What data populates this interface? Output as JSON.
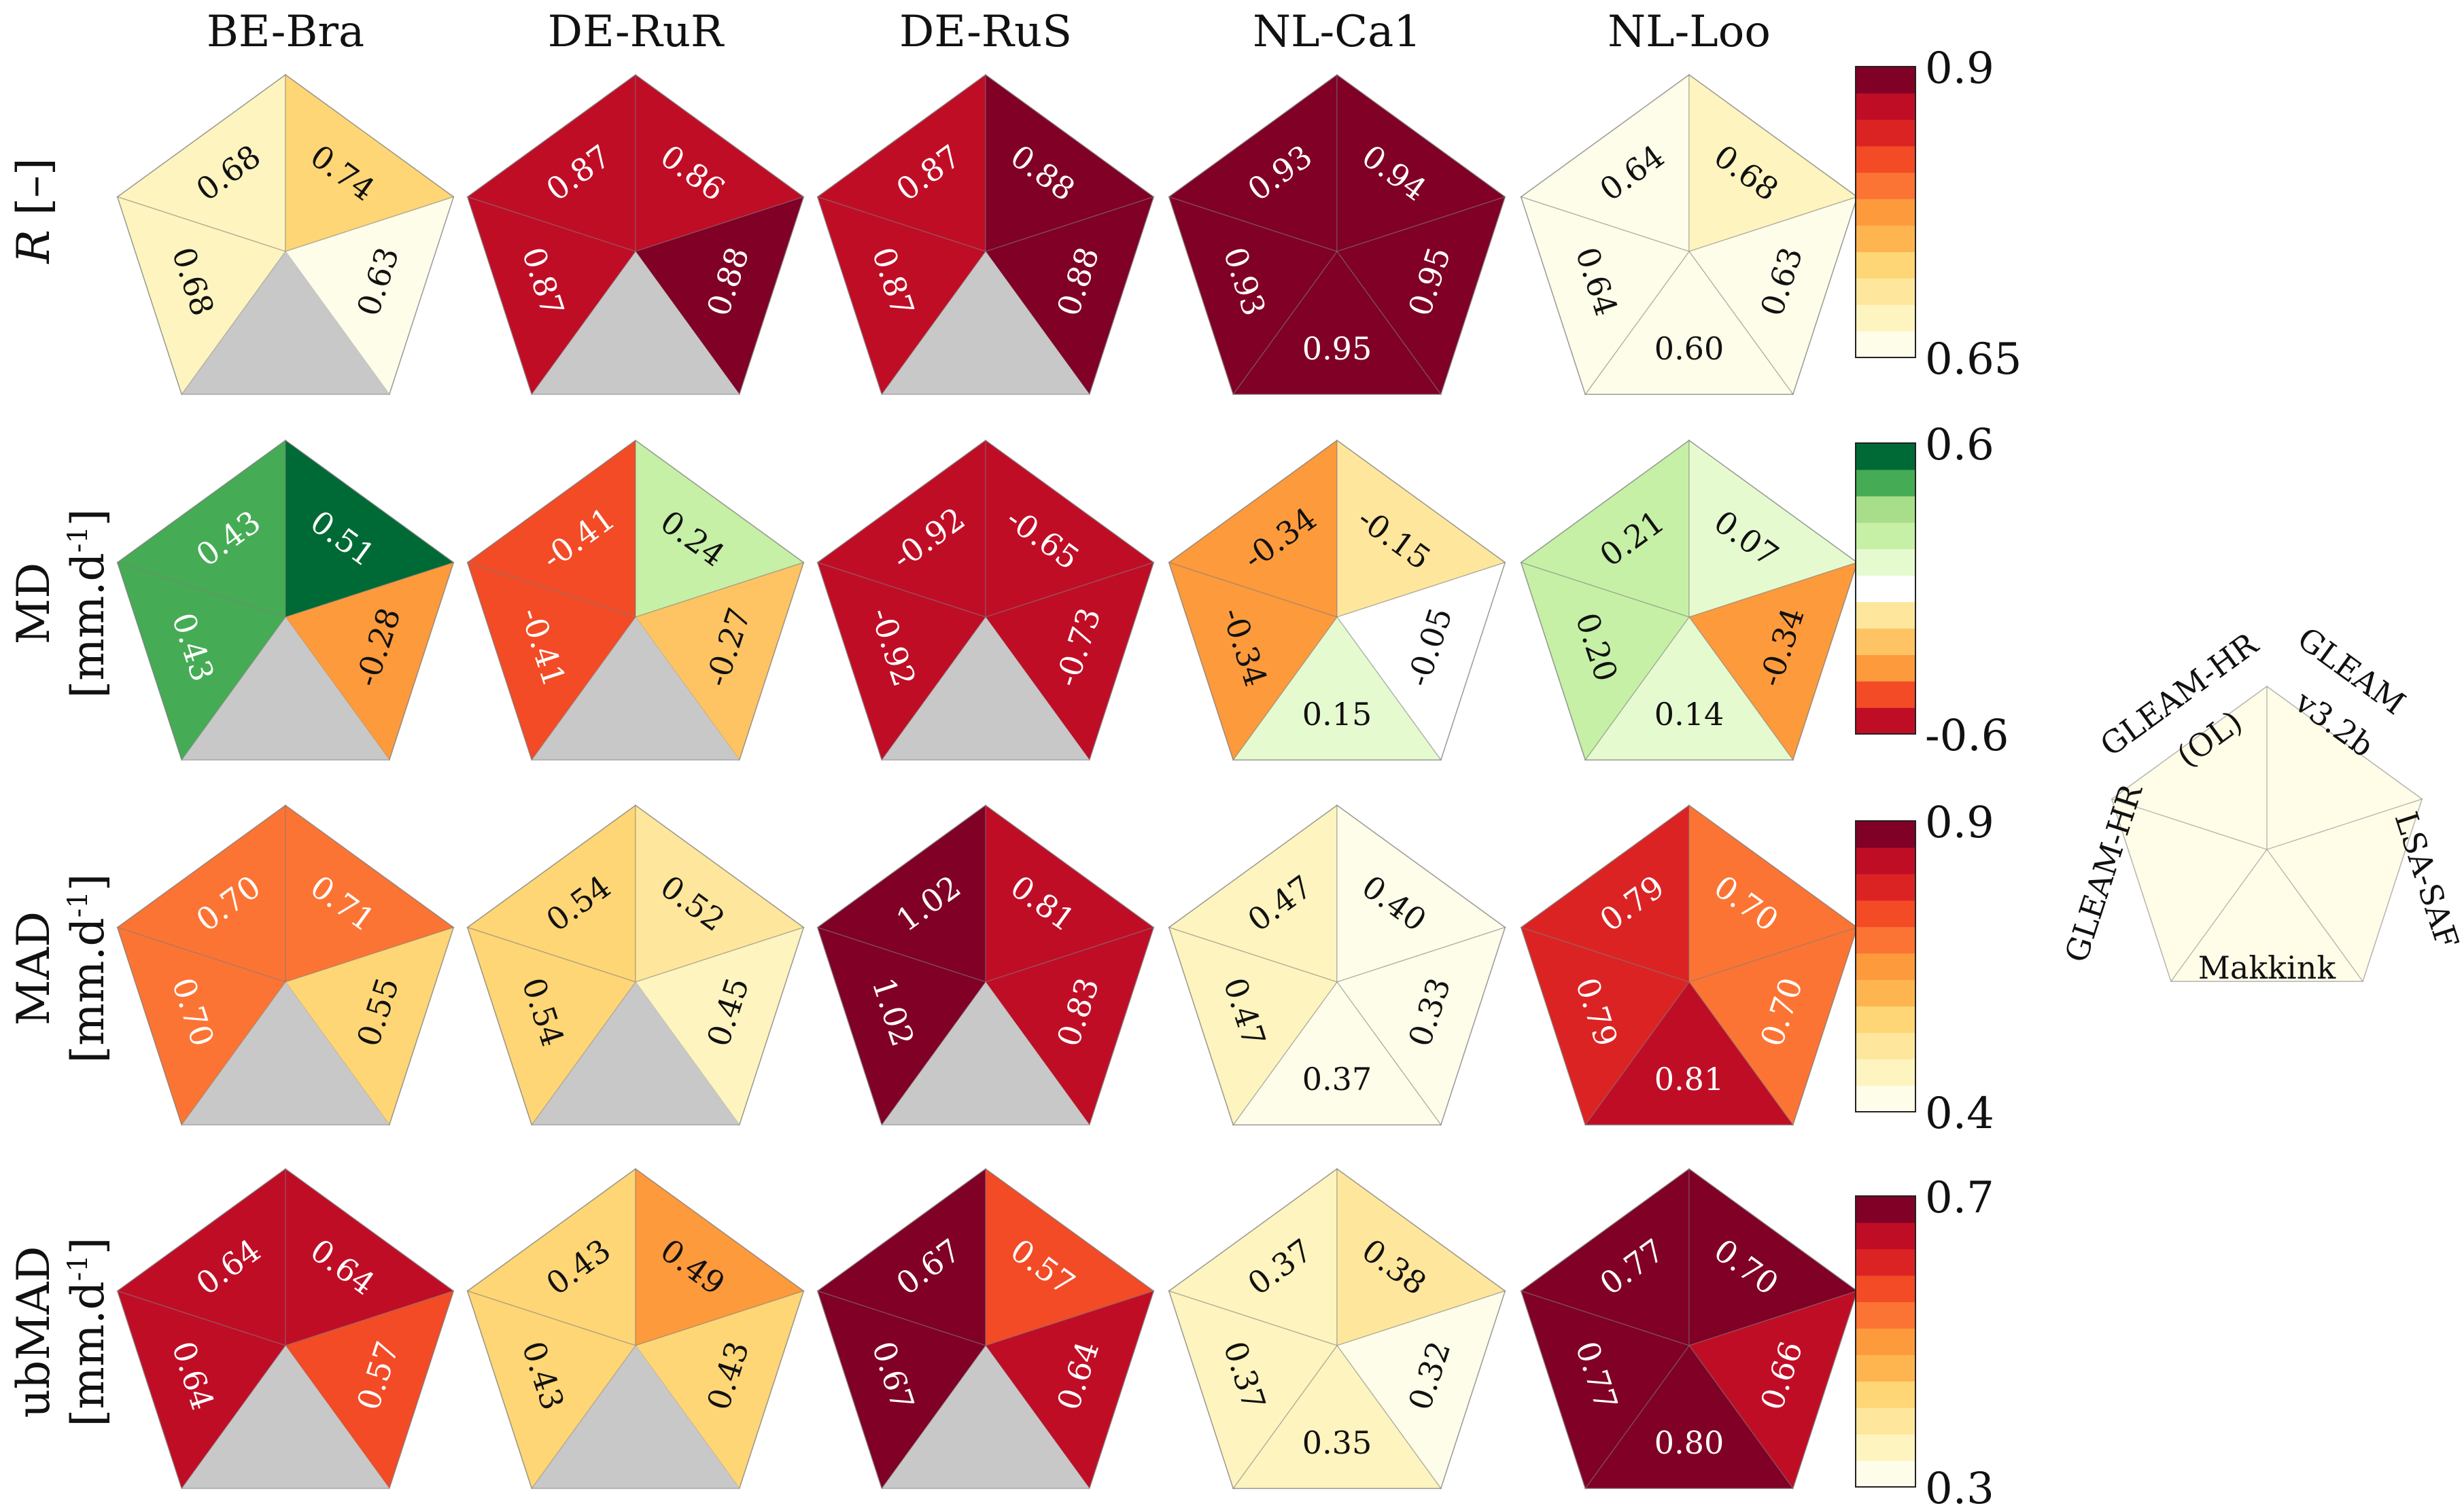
{
  "chart_data": {
    "type": "pentagon-heatmap",
    "sites": [
      "BE-Bra",
      "DE-RuR",
      "DE-RuS",
      "NL-Ca1",
      "NL-Loo"
    ],
    "segments": [
      "GLEAM-HR (OL)",
      "GLEAM v3.2b",
      "LSA-SAF",
      "Makkink",
      "GLEAM-HR"
    ],
    "legend": {
      "top_left": "GLEAM-HR",
      "top_left_sub": "(OL)",
      "top_right": "GLEAM",
      "top_right_sub": "v3.2b",
      "right": "LSA-SAF",
      "bottom": "Makkink",
      "left": "GLEAM-HR"
    },
    "metrics": [
      {
        "id": "R",
        "label_var": "R",
        "label_rest": " [–]",
        "colorbar": {
          "min": 0.65,
          "max": 0.9,
          "min_label": "0.65",
          "max_label": "0.9",
          "colors": [
            "#fefdea",
            "#fef4bf",
            "#fee79c",
            "#fed676",
            "#feb550",
            "#fd9a3c",
            "#fc7433",
            "#f24b26",
            "#dc2323",
            "#c00d26",
            "#800026"
          ]
        },
        "sites": [
          {
            "values": [
              "0.68",
              "0.74",
              "0.63",
              null,
              "0.68"
            ]
          },
          {
            "values": [
              "0.87",
              "0.86",
              "0.88",
              null,
              "0.87"
            ]
          },
          {
            "values": [
              "0.87",
              "0.88",
              "0.88",
              null,
              "0.87"
            ]
          },
          {
            "values": [
              "0.93",
              "0.94",
              "0.95",
              "0.95",
              "0.93"
            ]
          },
          {
            "values": [
              "0.64",
              "0.68",
              "0.63",
              "0.60",
              "0.64"
            ]
          }
        ]
      },
      {
        "id": "MD",
        "label_var": "MD",
        "label_unit": "[mm.d",
        "label_sup": "-1",
        "label_close": "]",
        "colorbar": {
          "min": -0.6,
          "max": 0.6,
          "min_label": "-0.6",
          "max_label": "0.6",
          "colors": [
            "#c00d26",
            "#f24b26",
            "#fd9a3c",
            "#fec463",
            "#fee79c",
            "#ffffff",
            "#e6fad0",
            "#c6f0a6",
            "#a8dd8a",
            "#45ac55",
            "#006a36"
          ]
        },
        "sites": [
          {
            "values": [
              "0.43",
              "0.51",
              "-0.28",
              null,
              "0.43"
            ]
          },
          {
            "values": [
              "-0.41",
              "0.24",
              "-0.27",
              null,
              "-0.41"
            ]
          },
          {
            "values": [
              "-0.92",
              "-0.65",
              "-0.73",
              null,
              "-0.92"
            ]
          },
          {
            "values": [
              "-0.34",
              "-0.15",
              "-0.05",
              "0.15",
              "-0.34"
            ]
          },
          {
            "values": [
              "0.21",
              "0.07",
              "-0.34",
              "0.14",
              "0.20"
            ]
          }
        ]
      },
      {
        "id": "MAD",
        "label_var": "MAD",
        "label_unit": "[mm.d",
        "label_sup": "-1",
        "label_close": "]",
        "colorbar": {
          "min": 0.4,
          "max": 0.9,
          "min_label": "0.4",
          "max_label": "0.9",
          "colors": [
            "#fefdea",
            "#fef4bf",
            "#fee79c",
            "#fed676",
            "#feb550",
            "#fd9a3c",
            "#fc7433",
            "#f24b26",
            "#dc2323",
            "#c00d26",
            "#800026"
          ]
        },
        "sites": [
          {
            "values": [
              "0.70",
              "0.71",
              "0.55",
              null,
              "0.70"
            ]
          },
          {
            "values": [
              "0.54",
              "0.52",
              "0.45",
              null,
              "0.54"
            ]
          },
          {
            "values": [
              "1.02",
              "0.81",
              "0.83",
              null,
              "1.02"
            ]
          },
          {
            "values": [
              "0.47",
              "0.40",
              "0.33",
              "0.37",
              "0.47"
            ]
          },
          {
            "values": [
              "0.79",
              "0.70",
              "0.70",
              "0.81",
              "0.79"
            ]
          }
        ]
      },
      {
        "id": "ubMAD",
        "label_var": "ubMAD",
        "label_unit": "[mm.d",
        "label_sup": "-1",
        "label_close": "]",
        "colorbar": {
          "min": 0.3,
          "max": 0.7,
          "min_label": "0.3",
          "max_label": "0.7",
          "colors": [
            "#fefdea",
            "#fef4bf",
            "#fee79c",
            "#fed676",
            "#feb550",
            "#fd9a3c",
            "#fc7433",
            "#f24b26",
            "#dc2323",
            "#c00d26",
            "#800026"
          ]
        },
        "sites": [
          {
            "values": [
              "0.64",
              "0.64",
              "0.57",
              null,
              "0.64"
            ]
          },
          {
            "values": [
              "0.43",
              "0.49",
              "0.43",
              null,
              "0.43"
            ]
          },
          {
            "values": [
              "0.67",
              "0.57",
              "0.64",
              null,
              "0.67"
            ]
          },
          {
            "values": [
              "0.37",
              "0.38",
              "0.32",
              "0.35",
              "0.37"
            ]
          },
          {
            "values": [
              "0.77",
              "0.70",
              "0.66",
              "0.80",
              "0.77"
            ]
          }
        ]
      }
    ],
    "missing_color": "#c8c8c8",
    "legend_fill": "#fffde8"
  }
}
